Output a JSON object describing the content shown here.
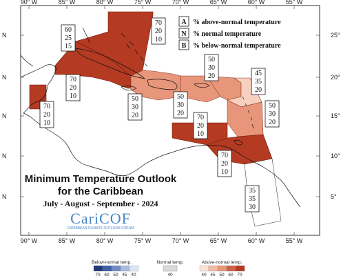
{
  "title": {
    "line1": "Minimum Temperature Outlook",
    "line2": "for the Caribbean",
    "period": "July - August - September - 2024"
  },
  "logo": {
    "name": "CariCOF",
    "subtitle": "CARIBBEAN CLIMATE OUTLOOK FORUM"
  },
  "legend": [
    {
      "key": "A",
      "text": "% above-normal temperature"
    },
    {
      "key": "N",
      "text": "% normal temperature"
    },
    {
      "key": "B",
      "text": "% below-normal temperature"
    }
  ],
  "longitude_ticks": [
    "90° W",
    "85° W",
    "80° W",
    "75° W",
    "70° W",
    "65° W",
    "60° W",
    "55° W"
  ],
  "latitude_ticks": {
    "left": [
      "N",
      "N",
      "N",
      "N",
      "N"
    ],
    "right": [
      "25°",
      "20°",
      "15°",
      "10°",
      "5°"
    ]
  },
  "regions": [
    {
      "id": "bahamas",
      "above": "70",
      "normal": "20",
      "below": "10",
      "color": "#b43a22"
    },
    {
      "id": "cuba-west",
      "above": "60",
      "normal": "25",
      "below": "15",
      "color": "#b43a22"
    },
    {
      "id": "belize",
      "above": "70",
      "normal": "20",
      "below": "10",
      "color": "#b43a22"
    },
    {
      "id": "central-america",
      "above": "70",
      "normal": "20",
      "below": "10",
      "color": "#b43a22"
    },
    {
      "id": "jamaica-hispaniola",
      "above": "50",
      "normal": "30",
      "below": "20",
      "color": "#e8967b"
    },
    {
      "id": "caribbean-central",
      "above": "50",
      "normal": "30",
      "below": "20",
      "color": "#e8967b"
    },
    {
      "id": "puerto-rico",
      "above": "50",
      "normal": "30",
      "below": "20",
      "color": "#e8967b"
    },
    {
      "id": "leeward-islands",
      "above": "45",
      "normal": "35",
      "below": "20",
      "color": "#f8d0c0"
    },
    {
      "id": "windward-islands",
      "above": "50",
      "normal": "30",
      "below": "20",
      "color": "#e8967b"
    },
    {
      "id": "abc-islands",
      "above": "70",
      "normal": "20",
      "below": "10",
      "color": "#b43a22"
    },
    {
      "id": "trinidad-guyana",
      "above": "70",
      "normal": "20",
      "below": "10",
      "color": "#b43a22"
    },
    {
      "id": "guianas",
      "above": "35",
      "normal": "35",
      "below": "30",
      "color": "#ffffff"
    }
  ],
  "colorbar": {
    "below_label": "Below-normal temp.",
    "normal_label": "Normal temp.",
    "above_label": "Above-normal temp.",
    "below_ticks": [
      "70",
      "60",
      "50",
      "45",
      "40"
    ],
    "normal_ticks": [
      "40"
    ],
    "above_ticks": [
      "40",
      "45",
      "50",
      "60",
      "70"
    ],
    "below_colors": [
      "#1f3a7a",
      "#3f5fa3",
      "#6f8cc6",
      "#a9bde0",
      "#dfe6f3"
    ],
    "normal_color": "#d9d9d9",
    "above_colors": [
      "#fbe1d6",
      "#f5b9a2",
      "#e8967b",
      "#cf6147",
      "#b43a22"
    ]
  }
}
